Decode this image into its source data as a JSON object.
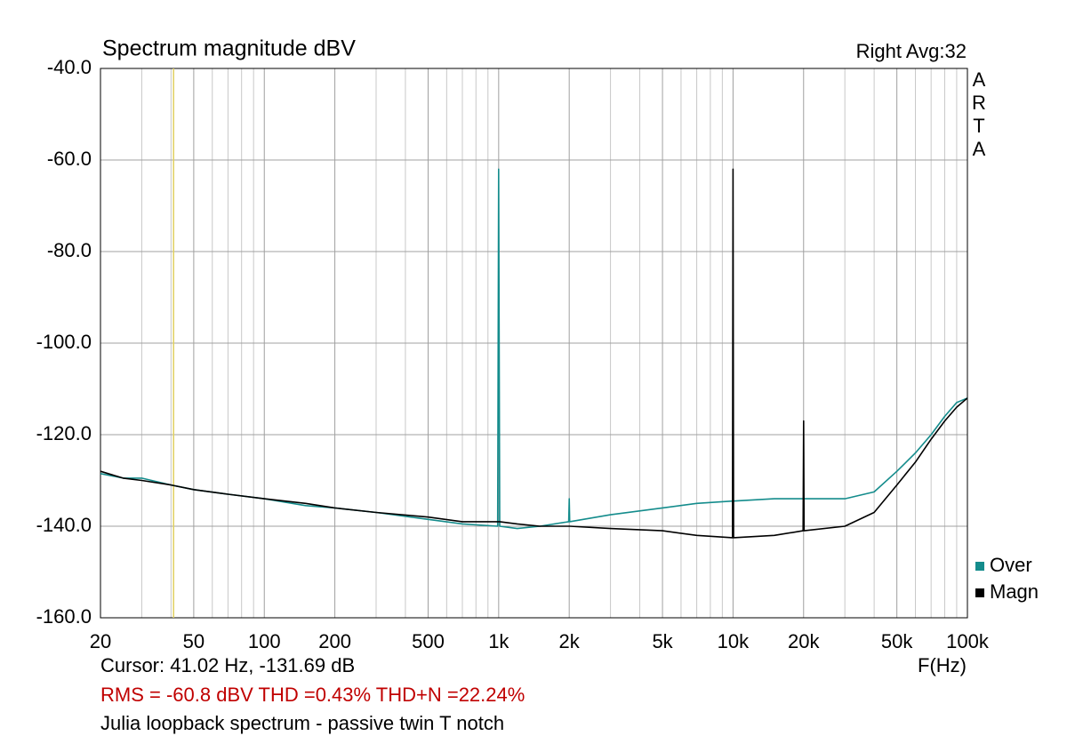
{
  "chart_data": {
    "type": "line",
    "title": "Spectrum magnitude dBV",
    "subtitle": "Right  Avg:32",
    "brand": "ARTA",
    "x_label": "F(Hz)",
    "cursor_text": "Cursor: 41.02 Hz, -131.69 dB",
    "cursor_x": 41.02,
    "cursor_color": "#e0d060",
    "stats_text": "RMS =  -60.8 dBV  THD =0.43%  THD+N =22.24%",
    "caption": "Julia loopback spectrum - passive twin T notch",
    "x_log": true,
    "grid": true,
    "legend": "lower right",
    "xlim": [
      20,
      100000
    ],
    "ylim": [
      -160,
      -40
    ],
    "xticks": [
      20,
      50,
      100,
      200,
      500,
      {
        "value": 1000,
        "label": "1k"
      },
      {
        "value": 2000,
        "label": "2k"
      },
      {
        "value": 5000,
        "label": "5k"
      },
      {
        "value": 10000,
        "label": "10k"
      },
      {
        "value": 20000,
        "label": "20k"
      },
      {
        "value": 50000,
        "label": "50k"
      },
      {
        "value": 100000,
        "label": "100k"
      }
    ],
    "xgrid_minor": [
      30,
      40,
      60,
      70,
      80,
      90,
      300,
      400,
      600,
      700,
      800,
      900,
      3000,
      4000,
      6000,
      7000,
      8000,
      9000,
      30000,
      40000,
      60000,
      70000,
      80000,
      90000
    ],
    "yticks": [
      {
        "value": -40,
        "label": "-40.0"
      },
      {
        "value": -60,
        "label": "-60.0"
      },
      {
        "value": -80,
        "label": "-80.0"
      },
      {
        "value": -100,
        "label": "-100.0"
      },
      {
        "value": -120,
        "label": "-120.0"
      },
      {
        "value": -140,
        "label": "-140.0"
      },
      {
        "value": -160,
        "label": "-160.0"
      }
    ],
    "x": [
      20,
      25,
      30,
      40,
      50,
      70,
      100,
      150,
      200,
      300,
      500,
      700,
      990,
      1000,
      1010,
      1200,
      1500,
      1990,
      2000,
      2010,
      3000,
      5000,
      7000,
      9950,
      10000,
      10050,
      15000,
      19900,
      20000,
      20100,
      30000,
      40000,
      50000,
      60000,
      70000,
      80000,
      90000,
      100000
    ],
    "series": [
      {
        "name": "Over",
        "color": "#148c8c",
        "values": [
          -128.5,
          -129.5,
          -129.5,
          -131,
          -132,
          -133,
          -134,
          -135.5,
          -136,
          -137,
          -138.5,
          -139.5,
          -140,
          -62,
          -140,
          -140.5,
          -140,
          -139,
          -134,
          -139,
          -137.5,
          -136,
          -135,
          -134.5,
          -134.5,
          -134.5,
          -134,
          -134,
          -134,
          -134,
          -134,
          -132.5,
          -128,
          -124,
          -120,
          -116,
          -113,
          -112
        ]
      },
      {
        "name": "Magn",
        "color": "#000000",
        "values": [
          -128,
          -129.5,
          -130,
          -131,
          -132,
          -133,
          -134,
          -135,
          -136,
          -137,
          -138,
          -139,
          -139,
          -139,
          -139,
          -139.5,
          -140,
          -140,
          -140,
          -140,
          -140.5,
          -141,
          -142,
          -142.5,
          -62,
          -142.5,
          -142,
          -141,
          -117,
          -141,
          -140,
          -137,
          -131,
          -126,
          -121,
          -117,
          -114,
          -112
        ]
      }
    ]
  }
}
